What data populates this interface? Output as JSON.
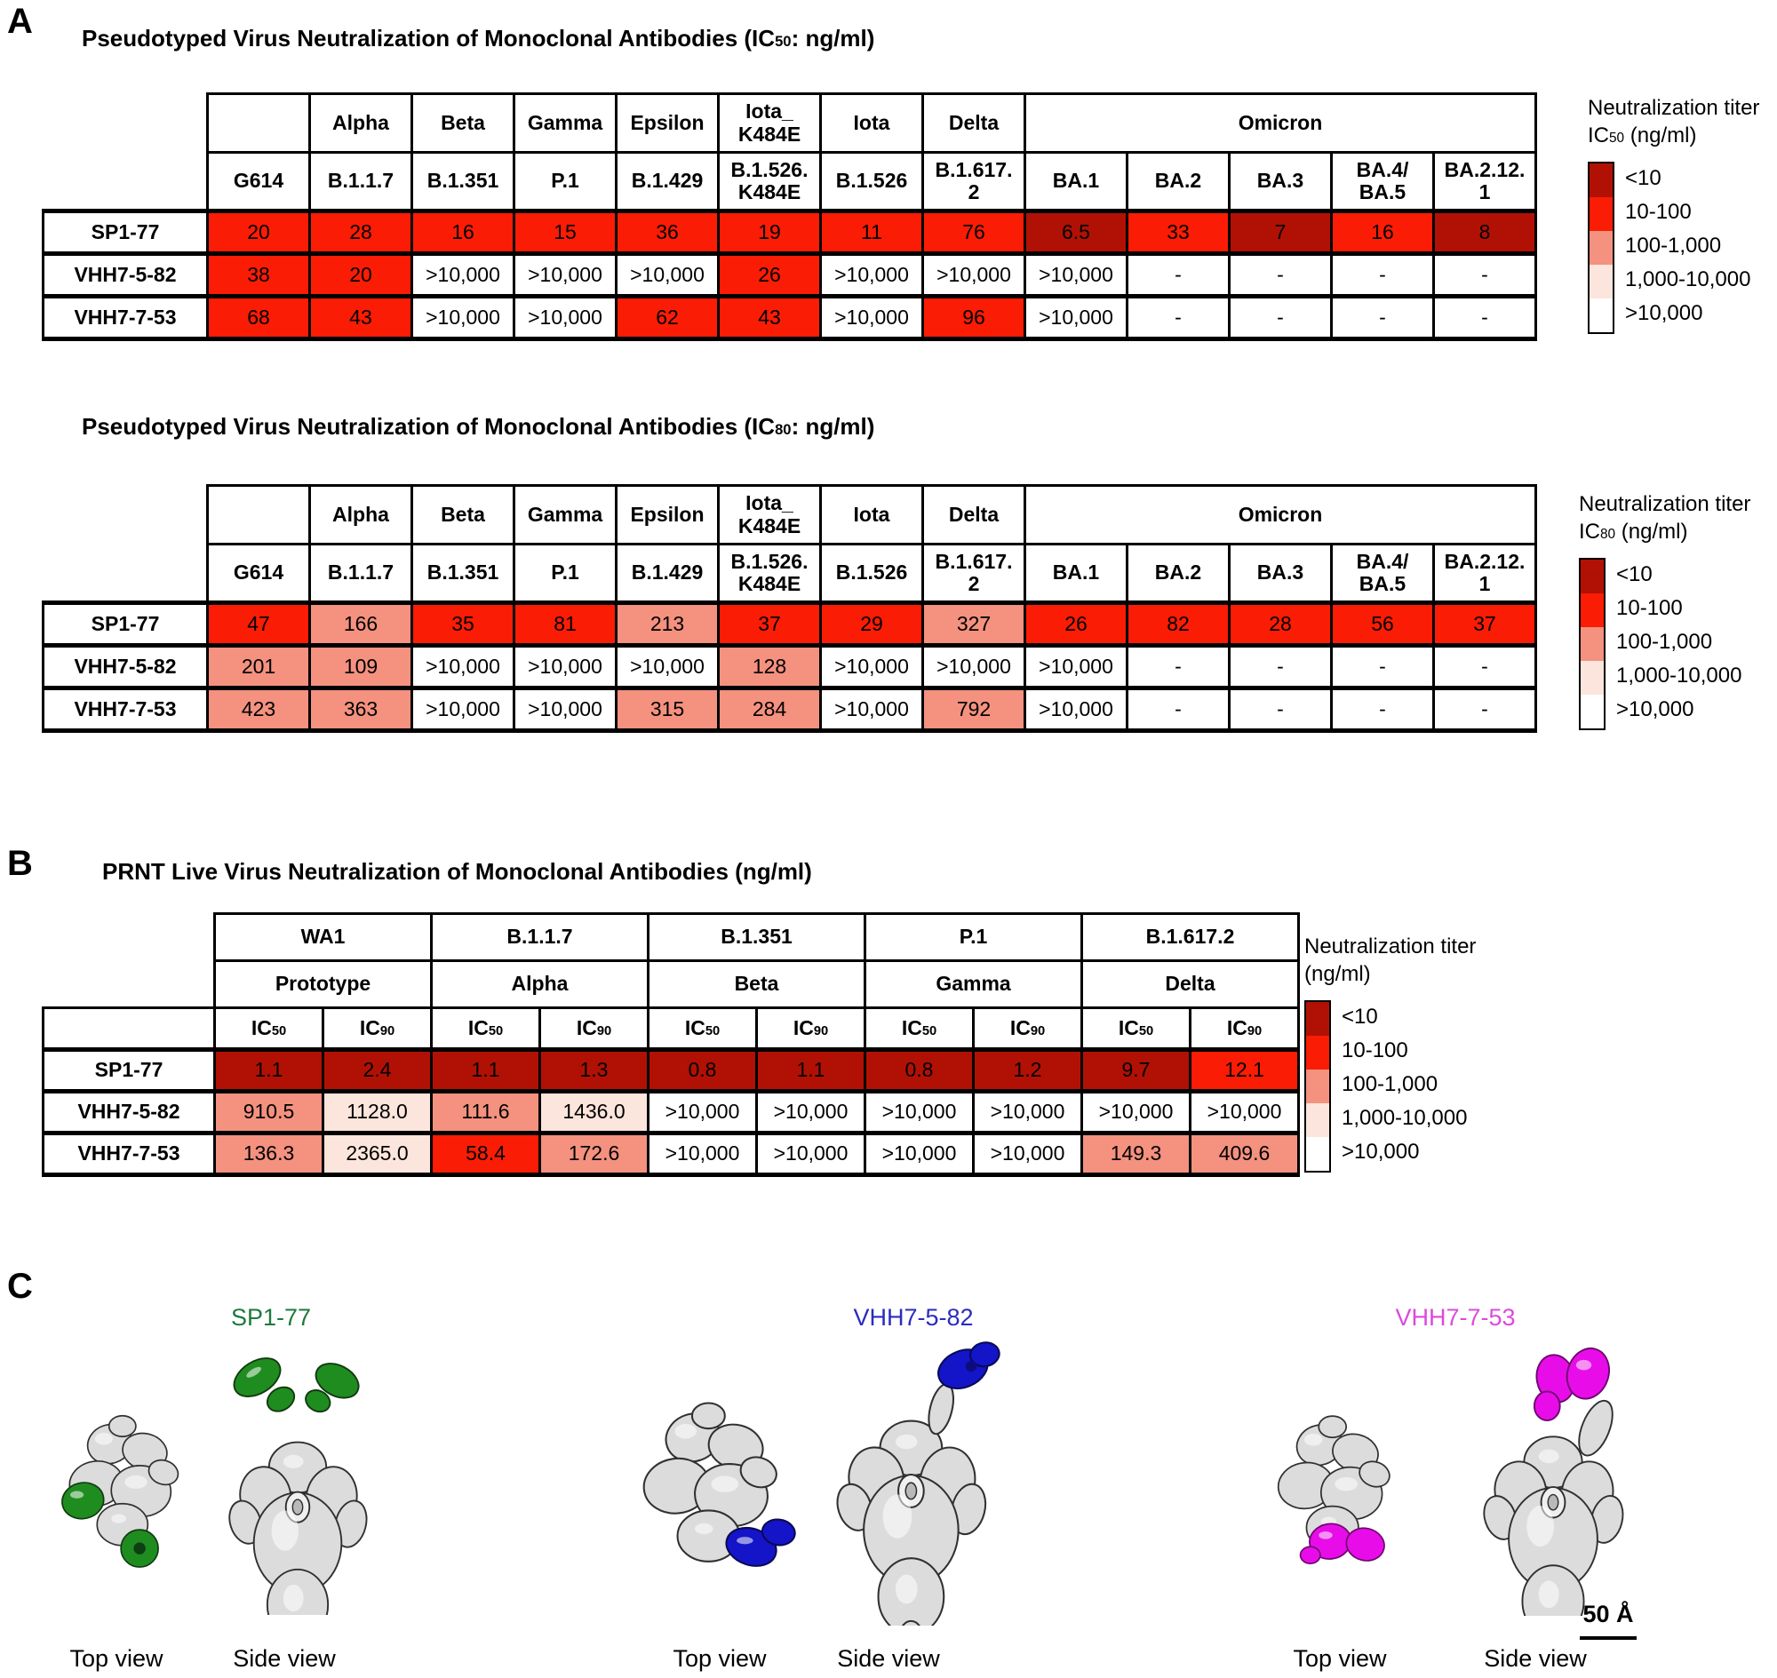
{
  "heat_palette": {
    "levels": [
      {
        "label": "<10",
        "color": "#B11104"
      },
      {
        "label": "10-100",
        "color": "#FA1C04"
      },
      {
        "label": "100-1,000",
        "color": "#F4917F"
      },
      {
        "label": "1,000-10,000",
        "color": "#FBE5DC"
      },
      {
        "label": ">10,000",
        "color": "#FFFFFF"
      }
    ]
  },
  "panel_a": {
    "label": "A",
    "tables": [
      {
        "title": {
          "pre": "Pseudotyped Virus Neutralization of Monoclonal Antibodies (IC",
          "sub": "50",
          "post": ": ng/ml)"
        },
        "group_header": [
          {
            "lines": [
              ""
            ],
            "span": 1
          },
          {
            "lines": [
              "Alpha"
            ],
            "span": 1
          },
          {
            "lines": [
              "Beta"
            ],
            "span": 1
          },
          {
            "lines": [
              "Gamma"
            ],
            "span": 1
          },
          {
            "lines": [
              "Epsilon"
            ],
            "span": 1
          },
          {
            "lines": [
              "Iota_",
              "K484E"
            ],
            "span": 1
          },
          {
            "lines": [
              "Iota"
            ],
            "span": 1
          },
          {
            "lines": [
              "Delta"
            ],
            "span": 1
          },
          {
            "lines": [
              "Omicron"
            ],
            "span": 5
          }
        ],
        "strain_header": [
          [
            "G614"
          ],
          [
            "B.1.1.7"
          ],
          [
            "B.1.351"
          ],
          [
            "P.1"
          ],
          [
            "B.1.429"
          ],
          [
            "B.1.526.",
            "K484E"
          ],
          [
            "B.1.526"
          ],
          [
            "B.1.617.",
            "2"
          ],
          [
            "BA.1"
          ],
          [
            "BA.2"
          ],
          [
            "BA.3"
          ],
          [
            "BA.4/",
            "BA.5"
          ],
          [
            "BA.2.12.",
            "1"
          ]
        ],
        "rows": [
          {
            "label": "SP1-77",
            "values": [
              "20",
              "28",
              "16",
              "15",
              "36",
              "19",
              "11",
              "76",
              "6.5",
              "33",
              "7",
              "16",
              "8"
            ]
          },
          {
            "label": "VHH7-5-82",
            "values": [
              "38",
              "20",
              ">10,000",
              ">10,000",
              ">10,000",
              "26",
              ">10,000",
              ">10,000",
              ">10,000",
              "-",
              "-",
              "-",
              "-"
            ]
          },
          {
            "label": "VHH7-7-53",
            "values": [
              "68",
              "43",
              ">10,000",
              ">10,000",
              "62",
              "43",
              ">10,000",
              "96",
              ">10,000",
              "-",
              "-",
              "-",
              "-"
            ]
          }
        ],
        "legend": {
          "title_lines": [
            {
              "text": "Neutralization titer"
            },
            {
              "pre": "IC",
              "sub": "50",
              "post": " (ng/ml)"
            }
          ]
        }
      },
      {
        "title": {
          "pre": "Pseudotyped Virus Neutralization of Monoclonal Antibodies (IC",
          "sub": "80",
          "post": ": ng/ml)"
        },
        "group_header": [
          {
            "lines": [
              ""
            ],
            "span": 1
          },
          {
            "lines": [
              "Alpha"
            ],
            "span": 1
          },
          {
            "lines": [
              "Beta"
            ],
            "span": 1
          },
          {
            "lines": [
              "Gamma"
            ],
            "span": 1
          },
          {
            "lines": [
              "Epsilon"
            ],
            "span": 1
          },
          {
            "lines": [
              "Iota_",
              "K484E"
            ],
            "span": 1
          },
          {
            "lines": [
              "Iota"
            ],
            "span": 1
          },
          {
            "lines": [
              "Delta"
            ],
            "span": 1
          },
          {
            "lines": [
              "Omicron"
            ],
            "span": 5
          }
        ],
        "strain_header": [
          [
            "G614"
          ],
          [
            "B.1.1.7"
          ],
          [
            "B.1.351"
          ],
          [
            "P.1"
          ],
          [
            "B.1.429"
          ],
          [
            "B.1.526.",
            "K484E"
          ],
          [
            "B.1.526"
          ],
          [
            "B.1.617.",
            "2"
          ],
          [
            "BA.1"
          ],
          [
            "BA.2"
          ],
          [
            "BA.3"
          ],
          [
            "BA.4/",
            "BA.5"
          ],
          [
            "BA.2.12.",
            "1"
          ]
        ],
        "rows": [
          {
            "label": "SP1-77",
            "values": [
              "47",
              "166",
              "35",
              "81",
              "213",
              "37",
              "29",
              "327",
              "26",
              "82",
              "28",
              "56",
              "37"
            ]
          },
          {
            "label": "VHH7-5-82",
            "values": [
              "201",
              "109",
              ">10,000",
              ">10,000",
              ">10,000",
              "128",
              ">10,000",
              ">10,000",
              ">10,000",
              "-",
              "-",
              "-",
              "-"
            ]
          },
          {
            "label": "VHH7-7-53",
            "values": [
              "423",
              "363",
              ">10,000",
              ">10,000",
              "315",
              "284",
              ">10,000",
              "792",
              ">10,000",
              "-",
              "-",
              "-",
              "-"
            ]
          }
        ],
        "legend": {
          "title_lines": [
            {
              "text": "Neutralization titer"
            },
            {
              "pre": "IC",
              "sub": "80",
              "post": " (ng/ml)"
            }
          ]
        }
      }
    ]
  },
  "panel_b": {
    "label": "B",
    "title": "PRNT Live Virus Neutralization of Monoclonal Antibodies (ng/ml)",
    "strain_header": [
      "WA1",
      "B.1.1.7",
      "B.1.351",
      "P.1",
      "B.1.617.2"
    ],
    "who_header": [
      "Prototype",
      "Alpha",
      "Beta",
      "Gamma",
      "Delta"
    ],
    "metric_header": [
      {
        "pre": "IC",
        "sub": "50"
      },
      {
        "pre": "IC",
        "sub": "90"
      }
    ],
    "rows": [
      {
        "label": "SP1-77",
        "values": [
          "1.1",
          "2.4",
          "1.1",
          "1.3",
          "0.8",
          "1.1",
          "0.8",
          "1.2",
          "9.7",
          "12.1"
        ]
      },
      {
        "label": "VHH7-5-82",
        "values": [
          "910.5",
          "1128.0",
          "111.6",
          "1436.0",
          ">10,000",
          ">10,000",
          ">10,000",
          ">10,000",
          ">10,000",
          ">10,000"
        ]
      },
      {
        "label": "VHH7-7-53",
        "values": [
          "136.3",
          "2365.0",
          "58.4",
          "172.6",
          ">10,000",
          ">10,000",
          ">10,000",
          ">10,000",
          "149.3",
          "409.6"
        ]
      }
    ],
    "legend": {
      "title_lines": [
        {
          "text": "Neutralization titer"
        },
        {
          "text": "(ng/ml)"
        }
      ]
    }
  },
  "panel_c": {
    "label": "C",
    "scale_bar": "50 Å",
    "structures": [
      {
        "name": "SP1-77",
        "label_color": "#1B7A3C",
        "blob_color": "#1F8C1F",
        "top_label": "Top view",
        "side_label": "Side view"
      },
      {
        "name": "VHH7-5-82",
        "label_color": "#2B2BBF",
        "blob_color": "#1414C8",
        "top_label": "Top view",
        "side_label": "Side view"
      },
      {
        "name": "VHH7-7-53",
        "label_color": "#DC4ADC",
        "blob_color": "#E80DE8",
        "top_label": "Top view",
        "side_label": "Side view"
      }
    ]
  }
}
